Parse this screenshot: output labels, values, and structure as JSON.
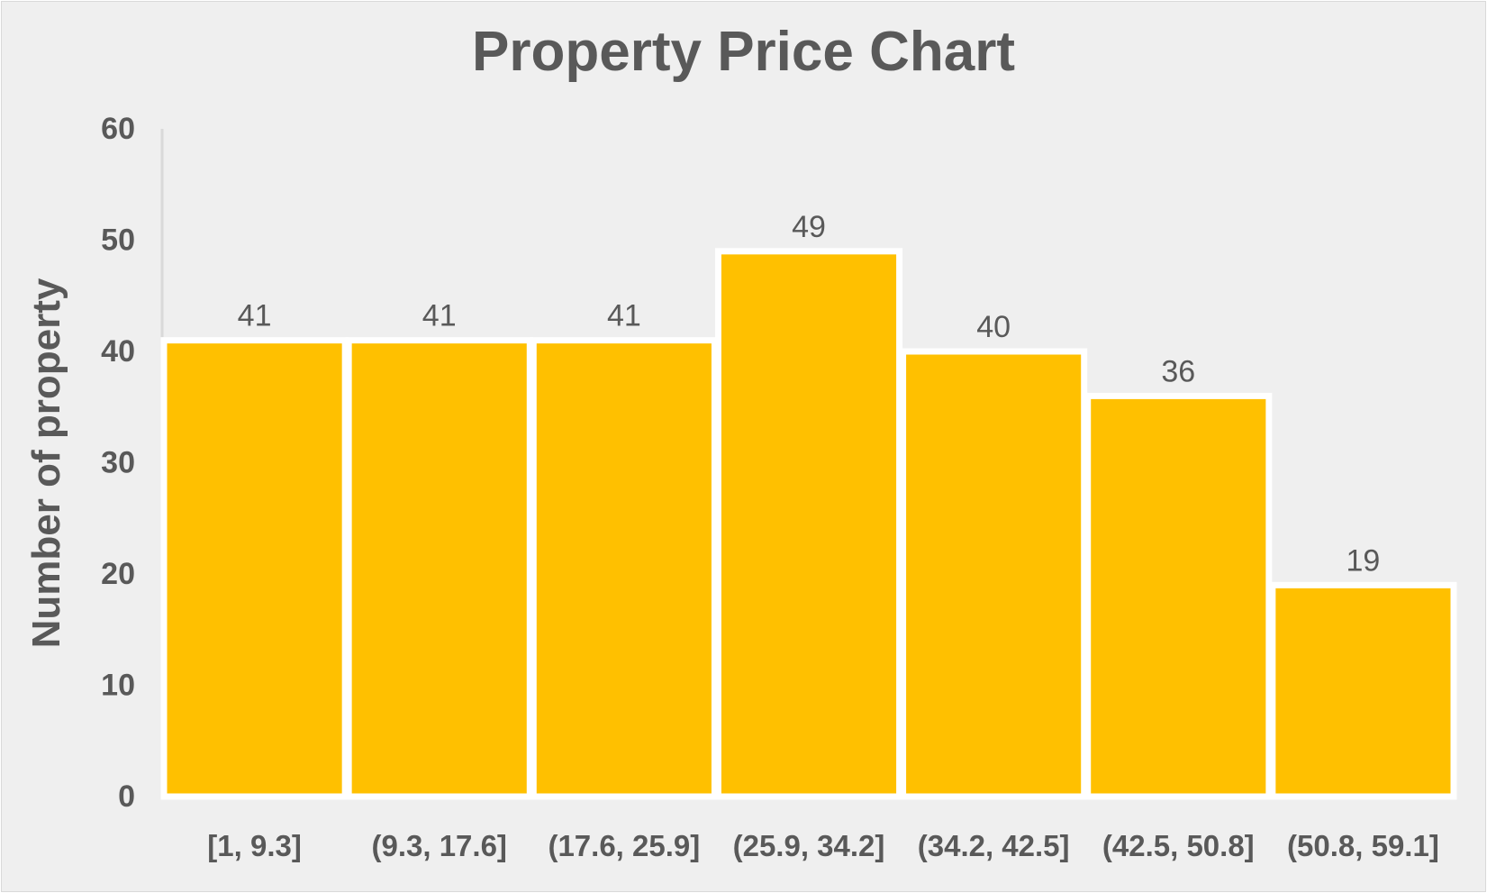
{
  "chart_data": {
    "type": "bar",
    "subtype": "histogram",
    "title": "Property Price Chart",
    "xlabel": "",
    "ylabel": "Number of property",
    "ylim": [
      0,
      60
    ],
    "yticks": [
      0,
      10,
      20,
      30,
      40,
      50,
      60
    ],
    "categories": [
      "[1, 9.3]",
      "(9.3, 17.6]",
      "(17.6, 25.9]",
      "(25.9, 34.2]",
      "(34.2, 42.5]",
      "(42.5, 50.8]",
      "(50.8, 59.1]"
    ],
    "values": [
      41,
      41,
      41,
      49,
      40,
      36,
      19
    ],
    "data_labels": true,
    "grid": false,
    "legend": "none",
    "colors": {
      "bar": "#ffc000",
      "bar_outline": "#ffffff",
      "background": "#efefef",
      "text": "#595959",
      "axis": "#d9d9d9"
    }
  }
}
